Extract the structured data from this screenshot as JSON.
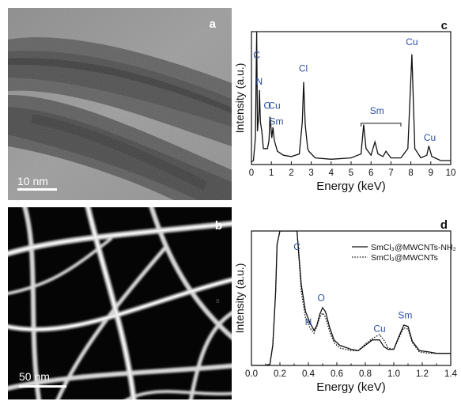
{
  "figure": {
    "panel_a": {
      "letter": "a",
      "scale_bar": "10 nm"
    },
    "panel_b": {
      "letter": "b",
      "scale_bar": "50 nm",
      "marker": "B"
    },
    "colors": {
      "element_label": "#2b4fa2",
      "trace": "#111111",
      "axis": "#111111"
    }
  },
  "chart_data": [
    {
      "type": "line",
      "panel": "c",
      "xlabel": "Energy (keV)",
      "ylabel": "Intensity (a.u.)",
      "xlim": [
        0,
        10
      ],
      "x_ticks": [
        "0",
        "1",
        "2",
        "3",
        "4",
        "5",
        "6",
        "7",
        "8",
        "9",
        "10"
      ],
      "series": [
        {
          "points": [
            [
              0,
              0.02
            ],
            [
              0.1,
              0.03
            ],
            [
              0.2,
              0.2
            ],
            [
              0.26,
              1.0
            ],
            [
              0.3,
              0.25
            ],
            [
              0.38,
              0.4
            ],
            [
              0.4,
              0.56
            ],
            [
              0.45,
              0.32
            ],
            [
              0.52,
              0.25
            ],
            [
              0.6,
              0.12
            ],
            [
              0.7,
              0.12
            ],
            [
              0.8,
              0.12
            ],
            [
              0.88,
              0.18
            ],
            [
              0.93,
              0.36
            ],
            [
              0.98,
              0.28
            ],
            [
              1.02,
              0.2
            ],
            [
              1.08,
              0.28
            ],
            [
              1.15,
              0.18
            ],
            [
              1.3,
              0.1
            ],
            [
              1.6,
              0.07
            ],
            [
              2.0,
              0.06
            ],
            [
              2.4,
              0.08
            ],
            [
              2.55,
              0.32
            ],
            [
              2.62,
              0.62
            ],
            [
              2.7,
              0.3
            ],
            [
              2.82,
              0.12
            ],
            [
              2.88,
              0.1
            ],
            [
              3.2,
              0.05
            ],
            [
              4.0,
              0.04
            ],
            [
              5.0,
              0.05
            ],
            [
              5.5,
              0.08
            ],
            [
              5.63,
              0.3
            ],
            [
              5.75,
              0.12
            ],
            [
              6.0,
              0.07
            ],
            [
              6.2,
              0.17
            ],
            [
              6.35,
              0.08
            ],
            [
              6.6,
              0.06
            ],
            [
              6.75,
              0.1
            ],
            [
              7.0,
              0.05
            ],
            [
              7.5,
              0.05
            ],
            [
              7.85,
              0.12
            ],
            [
              8.05,
              0.83
            ],
            [
              8.2,
              0.12
            ],
            [
              8.5,
              0.05
            ],
            [
              8.8,
              0.07
            ],
            [
              8.9,
              0.14
            ],
            [
              9.05,
              0.06
            ],
            [
              9.5,
              0.03
            ],
            [
              10,
              0.03
            ]
          ]
        }
      ],
      "peak_labels": [
        {
          "text": "C",
          "x": 0.26,
          "y": 0.8
        },
        {
          "text": "N",
          "x": 0.39,
          "y": 0.6
        },
        {
          "text": "O",
          "x": 0.8,
          "y": 0.42
        },
        {
          "text": "Cu",
          "x": 1.15,
          "y": 0.42
        },
        {
          "text": "Sm",
          "x": 1.25,
          "y": 0.3
        },
        {
          "text": "Cl",
          "x": 2.6,
          "y": 0.7
        },
        {
          "text": "Sm",
          "x": 6.3,
          "y": 0.38
        },
        {
          "text": "Cu",
          "x": 8.05,
          "y": 0.9
        },
        {
          "text": "Cu",
          "x": 8.95,
          "y": 0.18
        }
      ],
      "sm_bracket": {
        "x0": 5.5,
        "x1": 7.5,
        "y": 0.31
      },
      "letter": "c"
    },
    {
      "type": "line",
      "panel": "d",
      "xlabel": "Energy (keV)",
      "ylabel": "Intensity (a.u.)",
      "xlim": [
        0,
        1.4
      ],
      "x_ticks": [
        "0.0",
        "0.2",
        "0.4",
        "0.6",
        "0.8",
        "1.0",
        "1.2",
        "1.4"
      ],
      "series": [
        {
          "name": "SmCl₃@MWCNTs-NH₂",
          "style": "solid",
          "points": [
            [
              0,
              0
            ],
            [
              0.1,
              0.0
            ],
            [
              0.13,
              0.01
            ],
            [
              0.15,
              0.15
            ],
            [
              0.17,
              0.55
            ],
            [
              0.18,
              0.9
            ],
            [
              0.2,
              1.1
            ],
            [
              0.3,
              1.1
            ],
            [
              0.32,
              1.05
            ],
            [
              0.35,
              0.6
            ],
            [
              0.38,
              0.4
            ],
            [
              0.41,
              0.32
            ],
            [
              0.44,
              0.26
            ],
            [
              0.46,
              0.3
            ],
            [
              0.48,
              0.38
            ],
            [
              0.5,
              0.43
            ],
            [
              0.52,
              0.4
            ],
            [
              0.55,
              0.28
            ],
            [
              0.58,
              0.19
            ],
            [
              0.62,
              0.15
            ],
            [
              0.7,
              0.12
            ],
            [
              0.75,
              0.11
            ],
            [
              0.8,
              0.15
            ],
            [
              0.85,
              0.19
            ],
            [
              0.9,
              0.19
            ],
            [
              0.93,
              0.14
            ],
            [
              0.96,
              0.12
            ],
            [
              1.0,
              0.12
            ],
            [
              1.03,
              0.2
            ],
            [
              1.07,
              0.3
            ],
            [
              1.1,
              0.29
            ],
            [
              1.13,
              0.18
            ],
            [
              1.18,
              0.11
            ],
            [
              1.25,
              0.1
            ],
            [
              1.3,
              0.09
            ],
            [
              1.4,
              0.09
            ]
          ]
        },
        {
          "name": "SmCl₃@MWCNTs",
          "style": "dotted",
          "points": [
            [
              0,
              0
            ],
            [
              0.1,
              0.0
            ],
            [
              0.13,
              0.01
            ],
            [
              0.15,
              0.15
            ],
            [
              0.17,
              0.55
            ],
            [
              0.18,
              0.9
            ],
            [
              0.2,
              1.1
            ],
            [
              0.3,
              1.1
            ],
            [
              0.32,
              1.05
            ],
            [
              0.35,
              0.55
            ],
            [
              0.38,
              0.35
            ],
            [
              0.41,
              0.28
            ],
            [
              0.44,
              0.24
            ],
            [
              0.46,
              0.29
            ],
            [
              0.48,
              0.36
            ],
            [
              0.5,
              0.39
            ],
            [
              0.52,
              0.36
            ],
            [
              0.55,
              0.25
            ],
            [
              0.58,
              0.17
            ],
            [
              0.62,
              0.13
            ],
            [
              0.7,
              0.11
            ],
            [
              0.75,
              0.11
            ],
            [
              0.8,
              0.16
            ],
            [
              0.85,
              0.2
            ],
            [
              0.9,
              0.23
            ],
            [
              0.93,
              0.19
            ],
            [
              0.96,
              0.13
            ],
            [
              1.0,
              0.12
            ],
            [
              1.03,
              0.19
            ],
            [
              1.07,
              0.28
            ],
            [
              1.1,
              0.27
            ],
            [
              1.13,
              0.17
            ],
            [
              1.18,
              0.1
            ],
            [
              1.25,
              0.09
            ],
            [
              1.3,
              0.09
            ],
            [
              1.4,
              0.09
            ]
          ]
        }
      ],
      "peak_labels": [
        {
          "text": "C",
          "x": 0.32,
          "y": 0.86
        },
        {
          "text": "N",
          "x": 0.4,
          "y": 0.3
        },
        {
          "text": "O",
          "x": 0.49,
          "y": 0.48
        },
        {
          "text": "Cu",
          "x": 0.9,
          "y": 0.25
        },
        {
          "text": "Sm",
          "x": 1.08,
          "y": 0.35
        }
      ],
      "legend_position": "top-right",
      "letter": "d"
    }
  ]
}
